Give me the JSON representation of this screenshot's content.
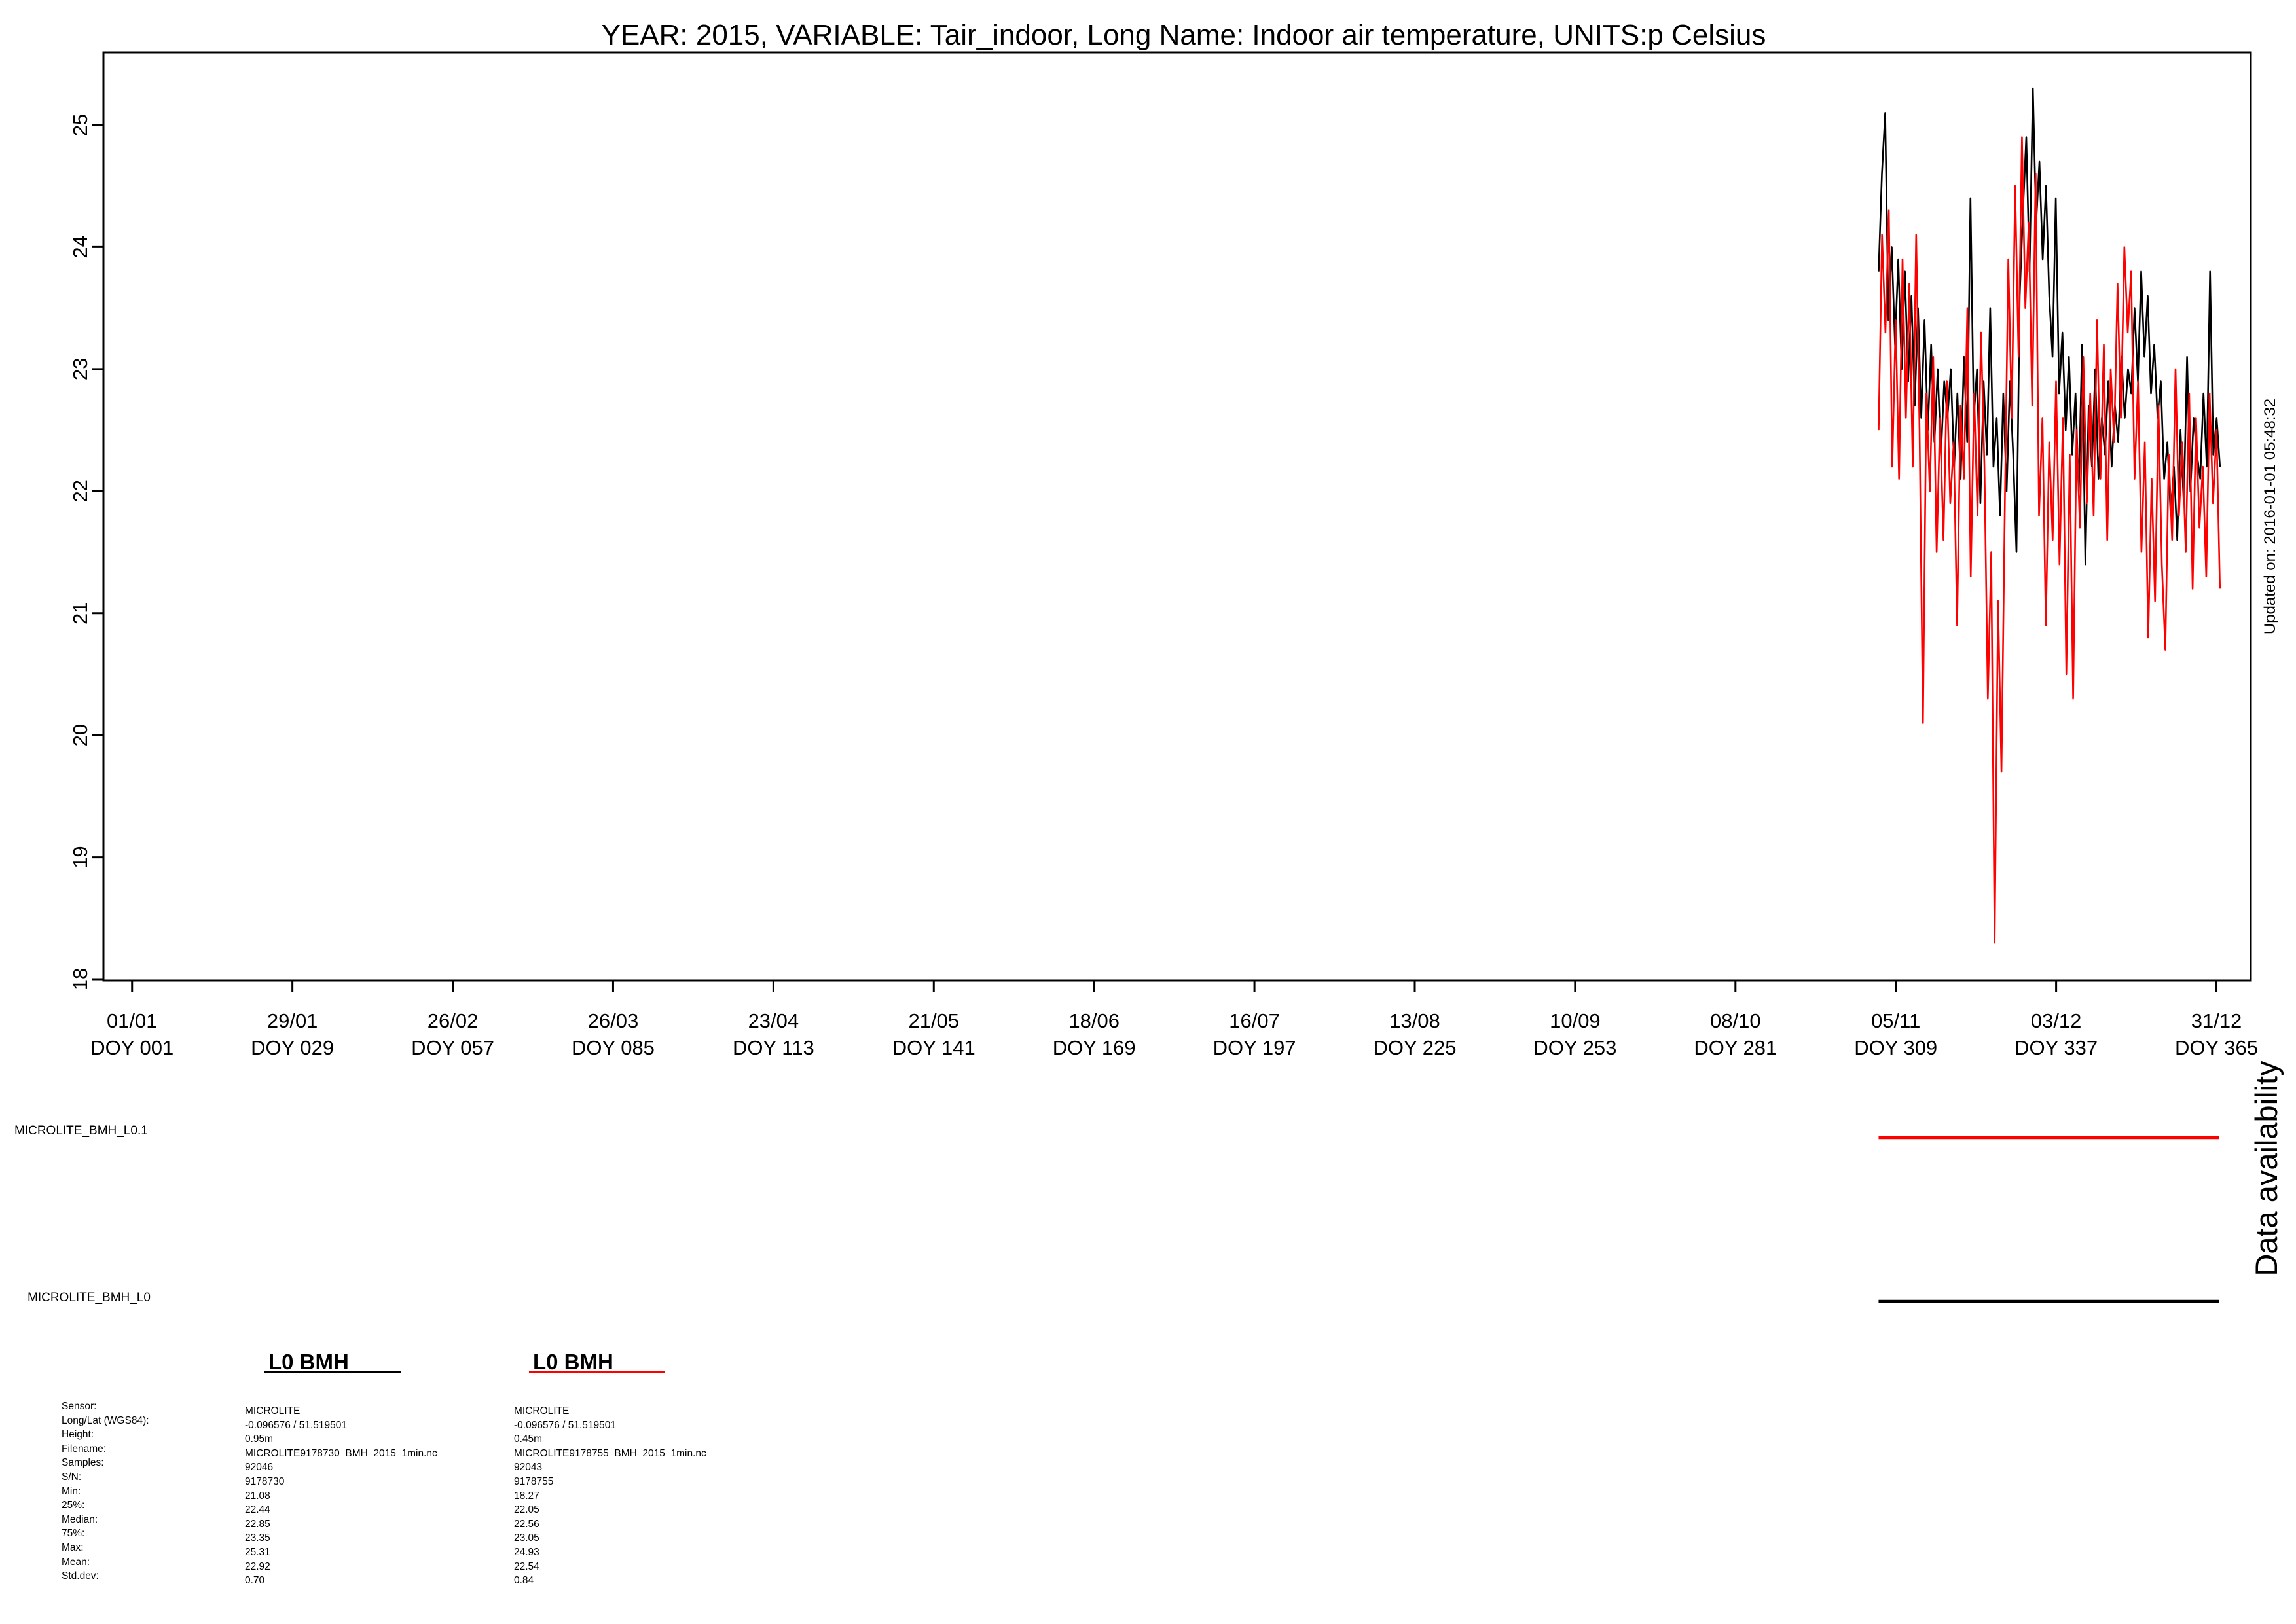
{
  "chart_data": {
    "type": "line",
    "title": "YEAR: 2015, VARIABLE: Tair_indoor, Long Name: Indoor air temperature, UNITS:p Celsius",
    "xlabel": "",
    "ylabel": "",
    "ylim": [
      18,
      25.5
    ],
    "xlim": [
      "2014-12-27",
      "2016-01-06"
    ],
    "y_ticks": [
      "18",
      "19",
      "20",
      "21",
      "22",
      "23",
      "24",
      "25"
    ],
    "x_ticks": [
      {
        "date": "2015-01-01",
        "line1": "01/01",
        "line2": "DOY 001"
      },
      {
        "date": "2015-01-29",
        "line1": "29/01",
        "line2": "DOY 029"
      },
      {
        "date": "2015-02-26",
        "line1": "26/02",
        "line2": "DOY 057"
      },
      {
        "date": "2015-03-26",
        "line1": "26/03",
        "line2": "DOY 085"
      },
      {
        "date": "2015-04-23",
        "line1": "23/04",
        "line2": "DOY 113"
      },
      {
        "date": "2015-05-21",
        "line1": "21/05",
        "line2": "DOY 141"
      },
      {
        "date": "2015-06-18",
        "line1": "18/06",
        "line2": "DOY 169"
      },
      {
        "date": "2015-07-16",
        "line1": "16/07",
        "line2": "DOY 197"
      },
      {
        "date": "2015-08-13",
        "line1": "13/08",
        "line2": "DOY 225"
      },
      {
        "date": "2015-09-10",
        "line1": "10/09",
        "line2": "DOY 253"
      },
      {
        "date": "2015-10-08",
        "line1": "08/10",
        "line2": "DOY 281"
      },
      {
        "date": "2015-11-05",
        "line1": "05/11",
        "line2": "DOY 309"
      },
      {
        "date": "2015-12-03",
        "line1": "03/12",
        "line2": "DOY 337"
      },
      {
        "date": "2015-12-31",
        "line1": "31/12",
        "line2": "DOY 365"
      }
    ],
    "grid": false,
    "series": [
      {
        "name": "MICROLITE_BMH_L0",
        "color": "#000000",
        "x_start": "2015-11-02",
        "x_end": "2015-12-31",
        "values": [
          23.8,
          24.6,
          25.1,
          23.4,
          24.0,
          23.2,
          23.9,
          23.0,
          23.8,
          22.9,
          23.6,
          22.7,
          23.5,
          22.6,
          23.4,
          22.5,
          23.2,
          22.4,
          23.0,
          22.3,
          22.9,
          22.6,
          23.0,
          22.2,
          22.8,
          22.1,
          23.1,
          22.4,
          24.4,
          22.6,
          23.0,
          21.9,
          22.9,
          22.3,
          23.5,
          22.2,
          22.6,
          21.8,
          22.8,
          22.0,
          22.9,
          22.3,
          21.5,
          23.6,
          24.3,
          24.9,
          23.8,
          25.3,
          24.2,
          24.7,
          23.9,
          24.5,
          23.6,
          23.1,
          24.4,
          22.8,
          23.3,
          22.5,
          23.1,
          22.3,
          22.8,
          22.0,
          23.2,
          21.4,
          22.7,
          22.2,
          23.0,
          22.1,
          22.6,
          22.3,
          22.9,
          22.2,
          22.7,
          22.4,
          23.1,
          22.6,
          23.0,
          22.8,
          23.5,
          22.9,
          23.8,
          23.1,
          23.6,
          22.8,
          23.2,
          22.6,
          22.9,
          22.1,
          22.4,
          21.8,
          22.2,
          21.6,
          22.5,
          21.9,
          23.1,
          22.0,
          22.6,
          22.3,
          22.1,
          22.8,
          22.2,
          23.8,
          22.3,
          22.6,
          22.2
        ]
      },
      {
        "name": "MICROLITE_BMH_L0.1",
        "color": "#ff0000",
        "x_start": "2015-11-02",
        "x_end": "2015-12-31",
        "values": [
          22.5,
          24.1,
          23.3,
          24.3,
          22.2,
          23.4,
          22.1,
          23.9,
          22.6,
          23.7,
          22.2,
          24.1,
          22.5,
          20.1,
          22.8,
          22.0,
          23.1,
          21.5,
          22.6,
          21.6,
          22.9,
          21.9,
          22.4,
          20.9,
          22.7,
          22.1,
          23.5,
          21.3,
          22.8,
          21.8,
          23.3,
          22.2,
          20.3,
          21.5,
          18.3,
          21.1,
          19.7,
          21.9,
          23.9,
          22.6,
          24.5,
          23.1,
          24.9,
          23.5,
          24.2,
          22.7,
          24.6,
          21.8,
          22.6,
          20.9,
          22.4,
          21.6,
          22.9,
          21.4,
          22.6,
          20.5,
          22.3,
          20.3,
          22.5,
          21.7,
          23.1,
          21.9,
          22.8,
          21.8,
          23.4,
          22.1,
          23.2,
          21.6,
          23.0,
          22.4,
          23.7,
          22.6,
          24.0,
          23.3,
          23.8,
          22.1,
          22.9,
          21.5,
          22.4,
          20.8,
          22.1,
          21.1,
          22.7,
          21.4,
          20.7,
          22.3,
          21.6,
          23.0,
          21.8,
          22.4,
          21.5,
          22.8,
          21.2,
          22.6,
          21.7,
          22.2,
          21.3,
          22.8,
          21.9,
          22.5,
          21.2
        ]
      }
    ],
    "side_note": "Updated on: 2016-01-01 05:48:32",
    "availability": {
      "label": "Data availability",
      "rows": [
        {
          "name": "MICROLITE_BMH_L0.1",
          "color": "#ff0000",
          "from": "2015-11-02",
          "to": "2015-12-31"
        },
        {
          "name": "MICROLITE_BMH_L0",
          "color": "#000000",
          "from": "2015-11-02",
          "to": "2015-12-31"
        }
      ]
    },
    "legend": [
      {
        "title": "L0 BMH",
        "color": "#000000"
      },
      {
        "title": "L0 BMH",
        "color": "#ff0000"
      }
    ]
  },
  "metadata": {
    "labels": [
      "Sensor:",
      "Long/Lat (WGS84):",
      "Height:",
      "Filename:",
      "Samples:",
      "S/N:",
      "Min:",
      "25%:",
      "Median:",
      "75%:",
      "Max:",
      "Mean:",
      "Std.dev:"
    ],
    "sensor1": [
      "MICROLITE",
      " -0.096576 / 51.519501",
      "0.95m",
      "MICROLITE9178730_BMH_2015_1min.nc",
      "92046",
      "9178730",
      "21.08",
      "22.44",
      "22.85",
      "23.35",
      "25.31",
      "22.92",
      "0.70"
    ],
    "sensor2": [
      "MICROLITE",
      " -0.096576 / 51.519501",
      "0.45m",
      "MICROLITE9178755_BMH_2015_1min.nc",
      "92043",
      "9178755",
      "18.27",
      "22.05",
      "22.56",
      "23.05",
      "24.93",
      "22.54",
      "0.84"
    ]
  }
}
